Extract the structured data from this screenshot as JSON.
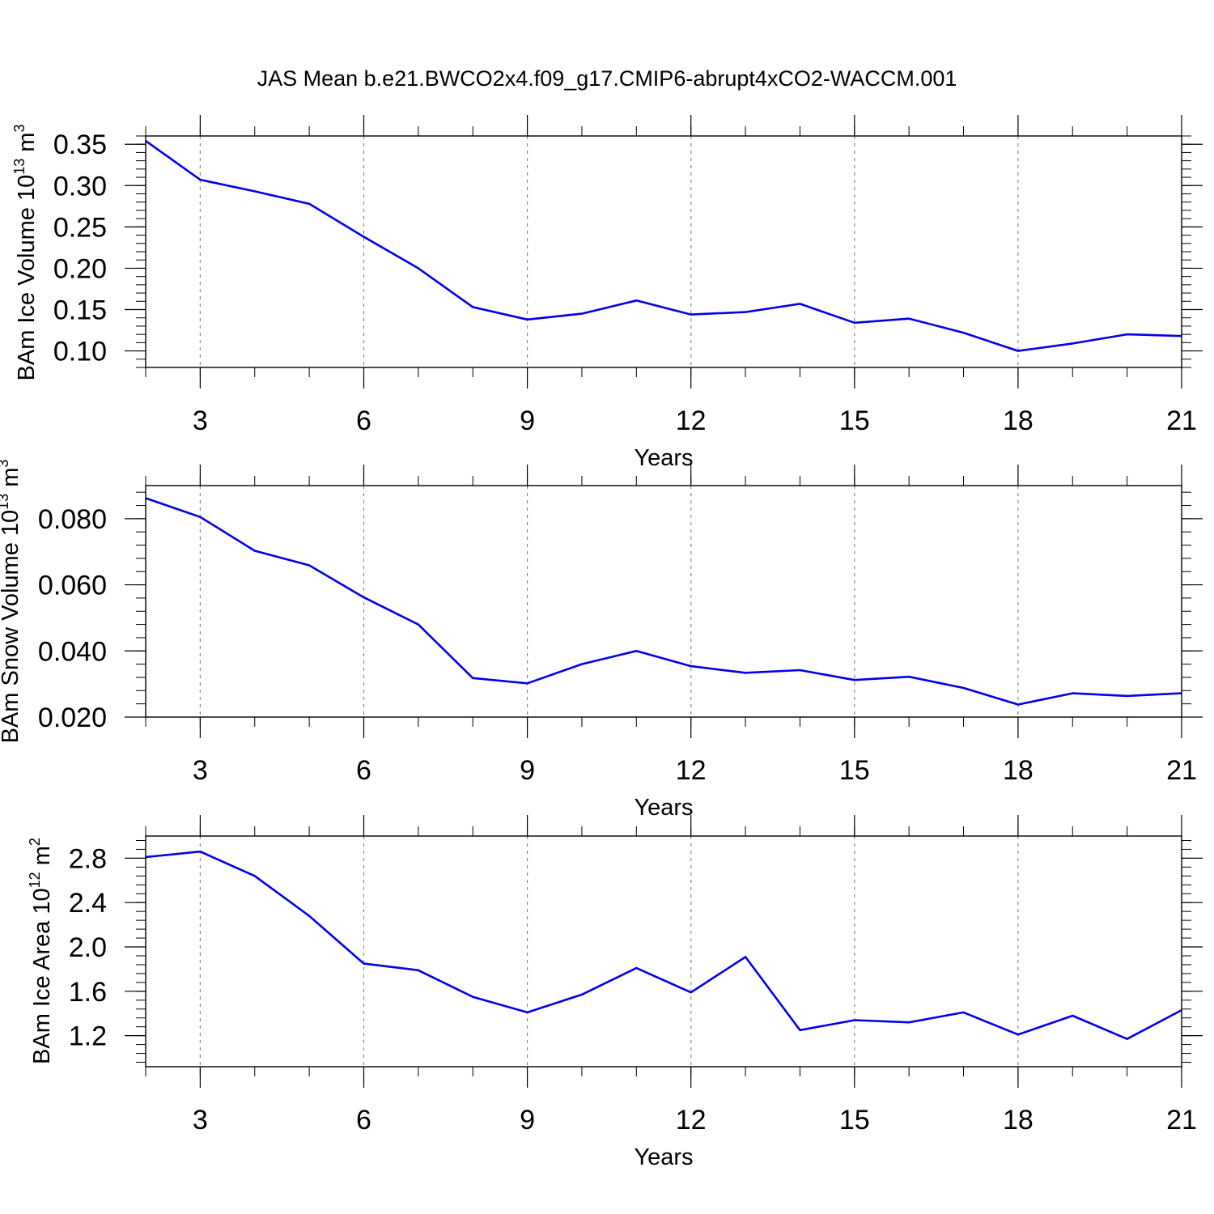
{
  "title": "JAS Mean b.e21.BWCO2x4.f09_g17.CMIP6-abrupt4xCO2-WACCM.001",
  "colors": {
    "line": "#0000ee",
    "axis": "#000000",
    "grid": "#8c8c8c"
  },
  "chart_data": [
    {
      "type": "line",
      "ylabel": {
        "main": "BAm Ice Volume 10",
        "exp": "13",
        "unit": " m",
        "unitexp": "3"
      },
      "xlabel": "Years",
      "xlim": [
        2,
        21
      ],
      "ylim": [
        0.08,
        0.36
      ],
      "xticks": [
        3,
        6,
        9,
        12,
        15,
        18,
        21
      ],
      "yticks": [
        0.1,
        0.15,
        0.2,
        0.25,
        0.3,
        0.35
      ],
      "ytick_labels": [
        "0.10",
        "0.15",
        "0.20",
        "0.25",
        "0.30",
        "0.35"
      ],
      "grid": "vertical dashed at major x ticks",
      "x": [
        2,
        3,
        4,
        5,
        6,
        7,
        8,
        9,
        10,
        11,
        12,
        13,
        14,
        15,
        16,
        17,
        18,
        19,
        20,
        21
      ],
      "values": [
        0.354,
        0.307,
        0.293,
        0.278,
        0.238,
        0.2,
        0.153,
        0.138,
        0.145,
        0.161,
        0.144,
        0.147,
        0.157,
        0.134,
        0.139,
        0.122,
        0.1,
        0.109,
        0.12,
        0.118
      ]
    },
    {
      "type": "line",
      "ylabel": {
        "main": "BAm Snow Volume 10",
        "exp": "13",
        "unit": " m",
        "unitexp": "3"
      },
      "xlabel": "Years",
      "xlim": [
        2,
        21
      ],
      "ylim": [
        0.02,
        0.09
      ],
      "xticks": [
        3,
        6,
        9,
        12,
        15,
        18,
        21
      ],
      "yticks": [
        0.02,
        0.04,
        0.06,
        0.08
      ],
      "ytick_labels": [
        "0.020",
        "0.040",
        "0.060",
        "0.080"
      ],
      "grid": "vertical dashed at major x ticks",
      "x": [
        2,
        3,
        4,
        5,
        6,
        7,
        8,
        9,
        10,
        11,
        12,
        13,
        14,
        15,
        16,
        17,
        18,
        19,
        20,
        21
      ],
      "values": [
        0.0862,
        0.0805,
        0.0703,
        0.0659,
        0.0562,
        0.048,
        0.0318,
        0.0302,
        0.036,
        0.04,
        0.0354,
        0.0334,
        0.0342,
        0.0312,
        0.0322,
        0.0288,
        0.0238,
        0.0272,
        0.0264,
        0.0272
      ]
    },
    {
      "type": "line",
      "ylabel": {
        "main": "BAm Ice Area 10",
        "exp": "12",
        "unit": " m",
        "unitexp": "2"
      },
      "xlabel": "Years",
      "xlim": [
        2,
        21
      ],
      "ylim": [
        0.92,
        3.0
      ],
      "xticks": [
        3,
        6,
        9,
        12,
        15,
        18,
        21
      ],
      "yticks": [
        1.2,
        1.6,
        2.0,
        2.4,
        2.8
      ],
      "ytick_labels": [
        "1.2",
        "1.6",
        "2.0",
        "2.4",
        "2.8"
      ],
      "grid": "vertical dashed at major x ticks",
      "x": [
        2,
        3,
        4,
        5,
        6,
        7,
        8,
        9,
        10,
        11,
        12,
        13,
        14,
        15,
        16,
        17,
        18,
        19,
        20,
        21
      ],
      "values": [
        2.81,
        2.86,
        2.64,
        2.28,
        1.85,
        1.79,
        1.55,
        1.41,
        1.57,
        1.81,
        1.59,
        1.91,
        1.25,
        1.34,
        1.32,
        1.41,
        1.21,
        1.38,
        1.17,
        1.43
      ]
    }
  ]
}
